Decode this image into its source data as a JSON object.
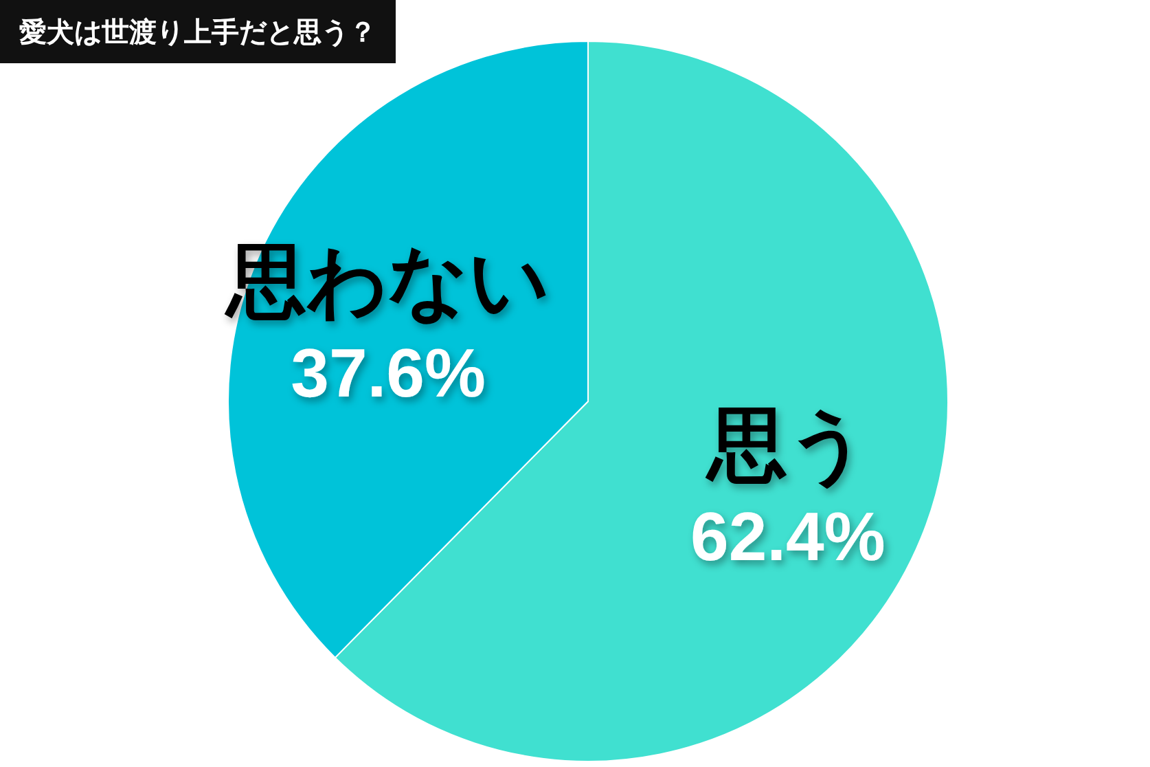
{
  "chart_data": {
    "type": "pie",
    "title": "愛犬は世渡り上手だと思う？",
    "categories": [
      "思う",
      "思わない"
    ],
    "values": [
      62.4,
      37.6
    ],
    "value_labels": [
      "62.4%",
      "37.6%"
    ],
    "colors": [
      "#40e0d0",
      "#00c3d9"
    ]
  }
}
